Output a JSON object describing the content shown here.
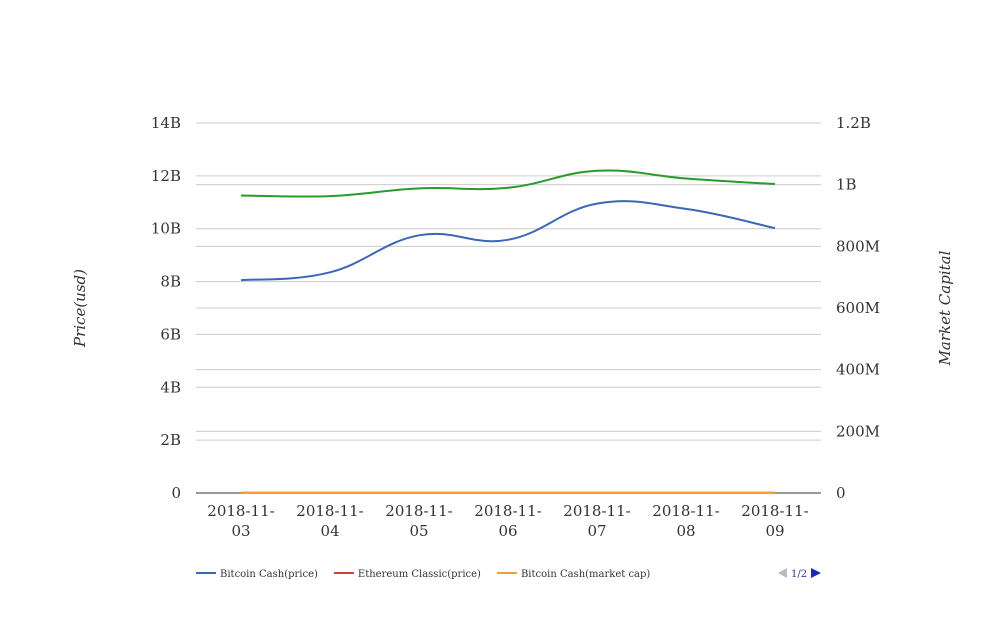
{
  "chart_data": {
    "type": "line",
    "categories": [
      "2018-11-03",
      "2018-11-04",
      "2018-11-05",
      "2018-11-06",
      "2018-11-07",
      "2018-11-08",
      "2018-11-09"
    ],
    "x_tick_labels": [
      [
        "2018-11-",
        "03"
      ],
      [
        "2018-11-",
        "04"
      ],
      [
        "2018-11-",
        "05"
      ],
      [
        "2018-11-",
        "06"
      ],
      [
        "2018-11-",
        "07"
      ],
      [
        "2018-11-",
        "08"
      ],
      [
        "2018-11-",
        "09"
      ]
    ],
    "y_left": {
      "label": "Price(usd)",
      "ticks": [
        "0",
        "2B",
        "4B",
        "6B",
        "8B",
        "10B",
        "12B",
        "14B"
      ],
      "tick_values": [
        0,
        2000000000,
        4000000000,
        6000000000,
        8000000000,
        10000000000,
        12000000000,
        14000000000
      ],
      "range": [
        0,
        14000000000
      ]
    },
    "y_right": {
      "label": "Market Capital",
      "ticks": [
        "0",
        "200M",
        "400M",
        "600M",
        "800M",
        "1B",
        "1.2B"
      ],
      "tick_values": [
        0,
        200000000,
        400000000,
        600000000,
        800000000,
        1000000000,
        1200000000
      ],
      "range": [
        0,
        1200000000
      ]
    },
    "series": [
      {
        "name": "Bitcoin Cash(price)",
        "axis": "left",
        "color": "#3b67b8",
        "values": [
          8050000000,
          8350000000,
          9750000000,
          9580000000,
          10950000000,
          10750000000,
          10020000000
        ]
      },
      {
        "name": "Ethereum Classic(price)",
        "axis": "left",
        "color": "#c9462c",
        "values": [
          10000000,
          10000000,
          10000000,
          10000000,
          10000000,
          10000000,
          10000000
        ]
      },
      {
        "name": "Bitcoin Cash(market cap)",
        "axis": "right",
        "color": "#f0a030",
        "values": [
          1000000,
          1000000,
          1000000,
          1000000,
          1000000,
          1000000,
          1000000
        ]
      },
      {
        "axis": "right",
        "color": "#2a9a2a",
        "values": [
          965000000,
          963000000,
          988000000,
          990000000,
          1045000000,
          1020000000,
          1002000000
        ]
      }
    ],
    "legend": {
      "position": "bottom",
      "pager": "1/2"
    },
    "grid": true
  }
}
